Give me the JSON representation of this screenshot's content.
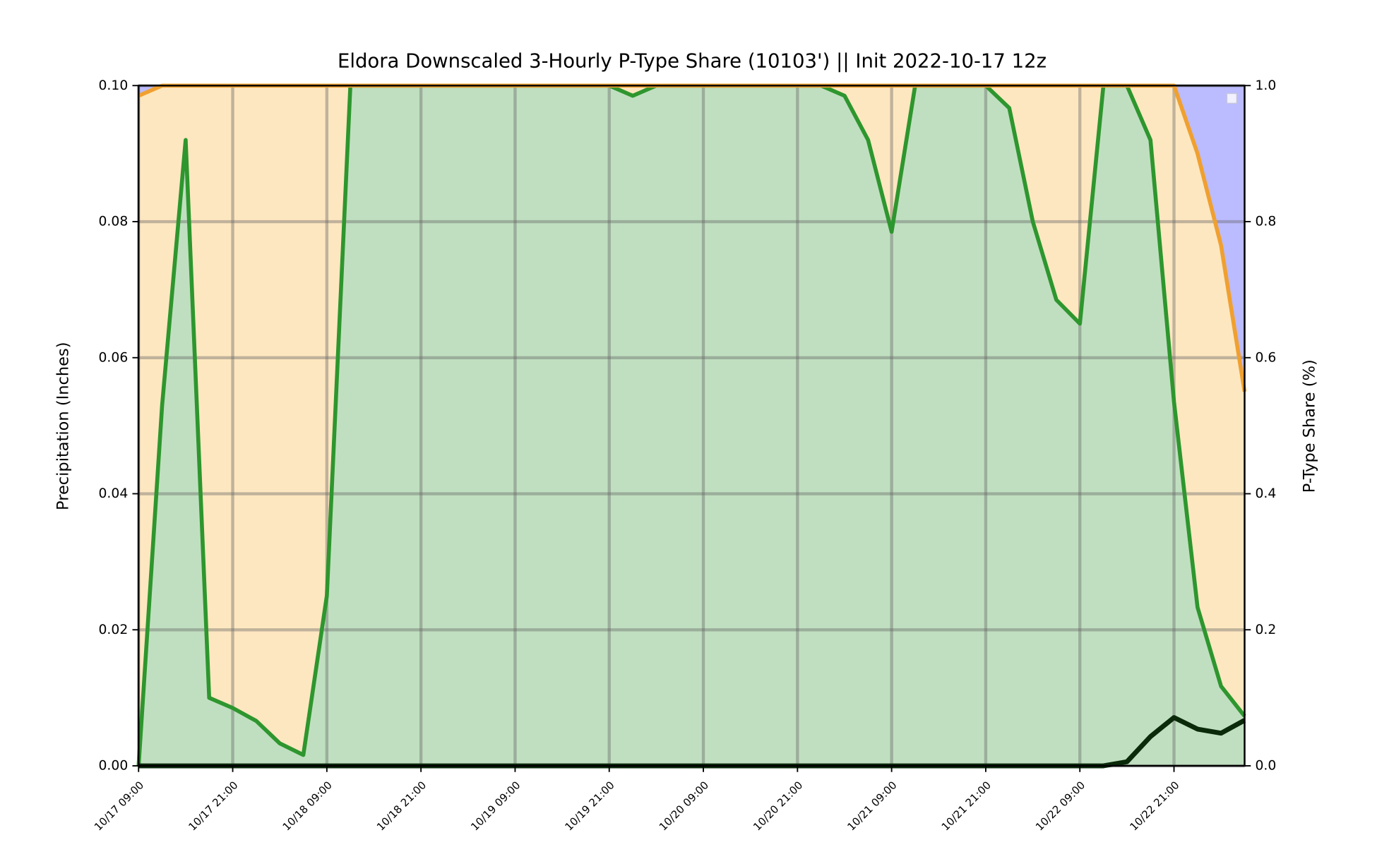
{
  "chart_data": {
    "type": "line",
    "title": "Eldora Downscaled 3-Hourly P-Type Share (10103') || Init 2022-10-17 12z",
    "ylabel": "Precipitation (Inches)",
    "y2label": "P-Type Share (%)",
    "categories": [
      "10/17 09:00",
      null,
      null,
      null,
      "10/17 21:00",
      null,
      null,
      null,
      "10/18 09:00",
      null,
      null,
      null,
      "10/18 21:00",
      null,
      null,
      null,
      "10/19 09:00",
      null,
      null,
      null,
      "10/19 21:00",
      null,
      null,
      null,
      "10/20 09:00",
      null,
      null,
      null,
      "10/20 21:00",
      null,
      null,
      null,
      "10/21 09:00",
      null,
      null,
      null,
      "10/21 21:00",
      null,
      null,
      null,
      "10/22 09:00",
      null,
      null,
      null,
      "10/22 21:00",
      null,
      null,
      null
    ],
    "series": [
      {
        "type": "area",
        "axis": "y2",
        "stacked": true,
        "color": "#2e962e",
        "fill": "#c0dfc0",
        "line": true,
        "values": [
          0,
          0.53,
          0.92,
          0.1,
          0.085,
          0.066,
          0.033,
          0.016,
          0.25,
          1.0,
          1.0,
          1.0,
          1.0,
          1.0,
          1.0,
          1.0,
          1.0,
          1.0,
          1.0,
          1.0,
          1.0,
          0.985,
          1.0,
          1.0,
          1.0,
          1.0,
          1.0,
          1.0,
          1.0,
          1.0,
          0.985,
          0.92,
          0.785,
          1.0,
          1.0,
          1.0,
          1.0,
          0.967,
          0.8,
          0.685,
          0.65,
          1.0,
          1.0,
          0.92,
          0.535,
          0.233,
          0.117,
          0.073
        ]
      },
      {
        "type": "area",
        "axis": "y2",
        "stacked": true,
        "color": "#f0a030",
        "fill": "#fde7c0",
        "line": true,
        "values": [
          0.985,
          0.47,
          0.08,
          0.9,
          0.915,
          0.934,
          0.967,
          0.984,
          0.75,
          0,
          0,
          0,
          0,
          0,
          0,
          0,
          0,
          0,
          0,
          0,
          0,
          0.015,
          0,
          0,
          0,
          0,
          0,
          0,
          0,
          0,
          0.015,
          0.08,
          0.215,
          0,
          0,
          0,
          0,
          0.033,
          0.2,
          0.315,
          0.35,
          0,
          0,
          0.08,
          0.465,
          0.667,
          0.648,
          0.477
        ]
      },
      {
        "type": "area",
        "axis": "y2",
        "stacked": true,
        "color": "#bbbbff",
        "fill": "#bbbbff",
        "line": false,
        "values": [
          0.015,
          0,
          0,
          0,
          0,
          0,
          0,
          0,
          0,
          0,
          0,
          0,
          0,
          0,
          0,
          0,
          0,
          0,
          0,
          0,
          0,
          0,
          0,
          0,
          0,
          0,
          0,
          0,
          0,
          0,
          0,
          0,
          0,
          0,
          0,
          0,
          0,
          0,
          0,
          0,
          0,
          0,
          0,
          0,
          0,
          0.1,
          0.235,
          0.45
        ]
      },
      {
        "type": "line",
        "axis": "y",
        "color": "#0a2a0a",
        "values": [
          0,
          0,
          0,
          0,
          0,
          0,
          0,
          0,
          0,
          0,
          0,
          0,
          0,
          0,
          0,
          0,
          0,
          0,
          0,
          0,
          0,
          0,
          0,
          0,
          0,
          0,
          0,
          0,
          0,
          0,
          0,
          0,
          0,
          0,
          0,
          0,
          0,
          0,
          0,
          0,
          0,
          0,
          0.0006,
          0.0043,
          0.0071,
          0.0054,
          0.0048,
          0.0067
        ]
      }
    ],
    "ylim": [
      0,
      0.1
    ],
    "yticks": [
      {
        "value": 0,
        "label": "0.00"
      },
      {
        "value": 0.02,
        "label": "0.02"
      },
      {
        "value": 0.04,
        "label": "0.04"
      },
      {
        "value": 0.06,
        "label": "0.06"
      },
      {
        "value": 0.08,
        "label": "0.08"
      },
      {
        "value": 0.1,
        "label": "0.10"
      }
    ],
    "y2lim": [
      0,
      1
    ],
    "y2ticks": [
      {
        "value": 0,
        "label": "0.0"
      },
      {
        "value": 0.2,
        "label": "0.2"
      },
      {
        "value": 0.4,
        "label": "0.4"
      },
      {
        "value": 0.6,
        "label": "0.6"
      },
      {
        "value": 0.8,
        "label": "0.8"
      },
      {
        "value": 1,
        "label": "1.0"
      }
    ],
    "grid": true,
    "legend": "upper right"
  }
}
